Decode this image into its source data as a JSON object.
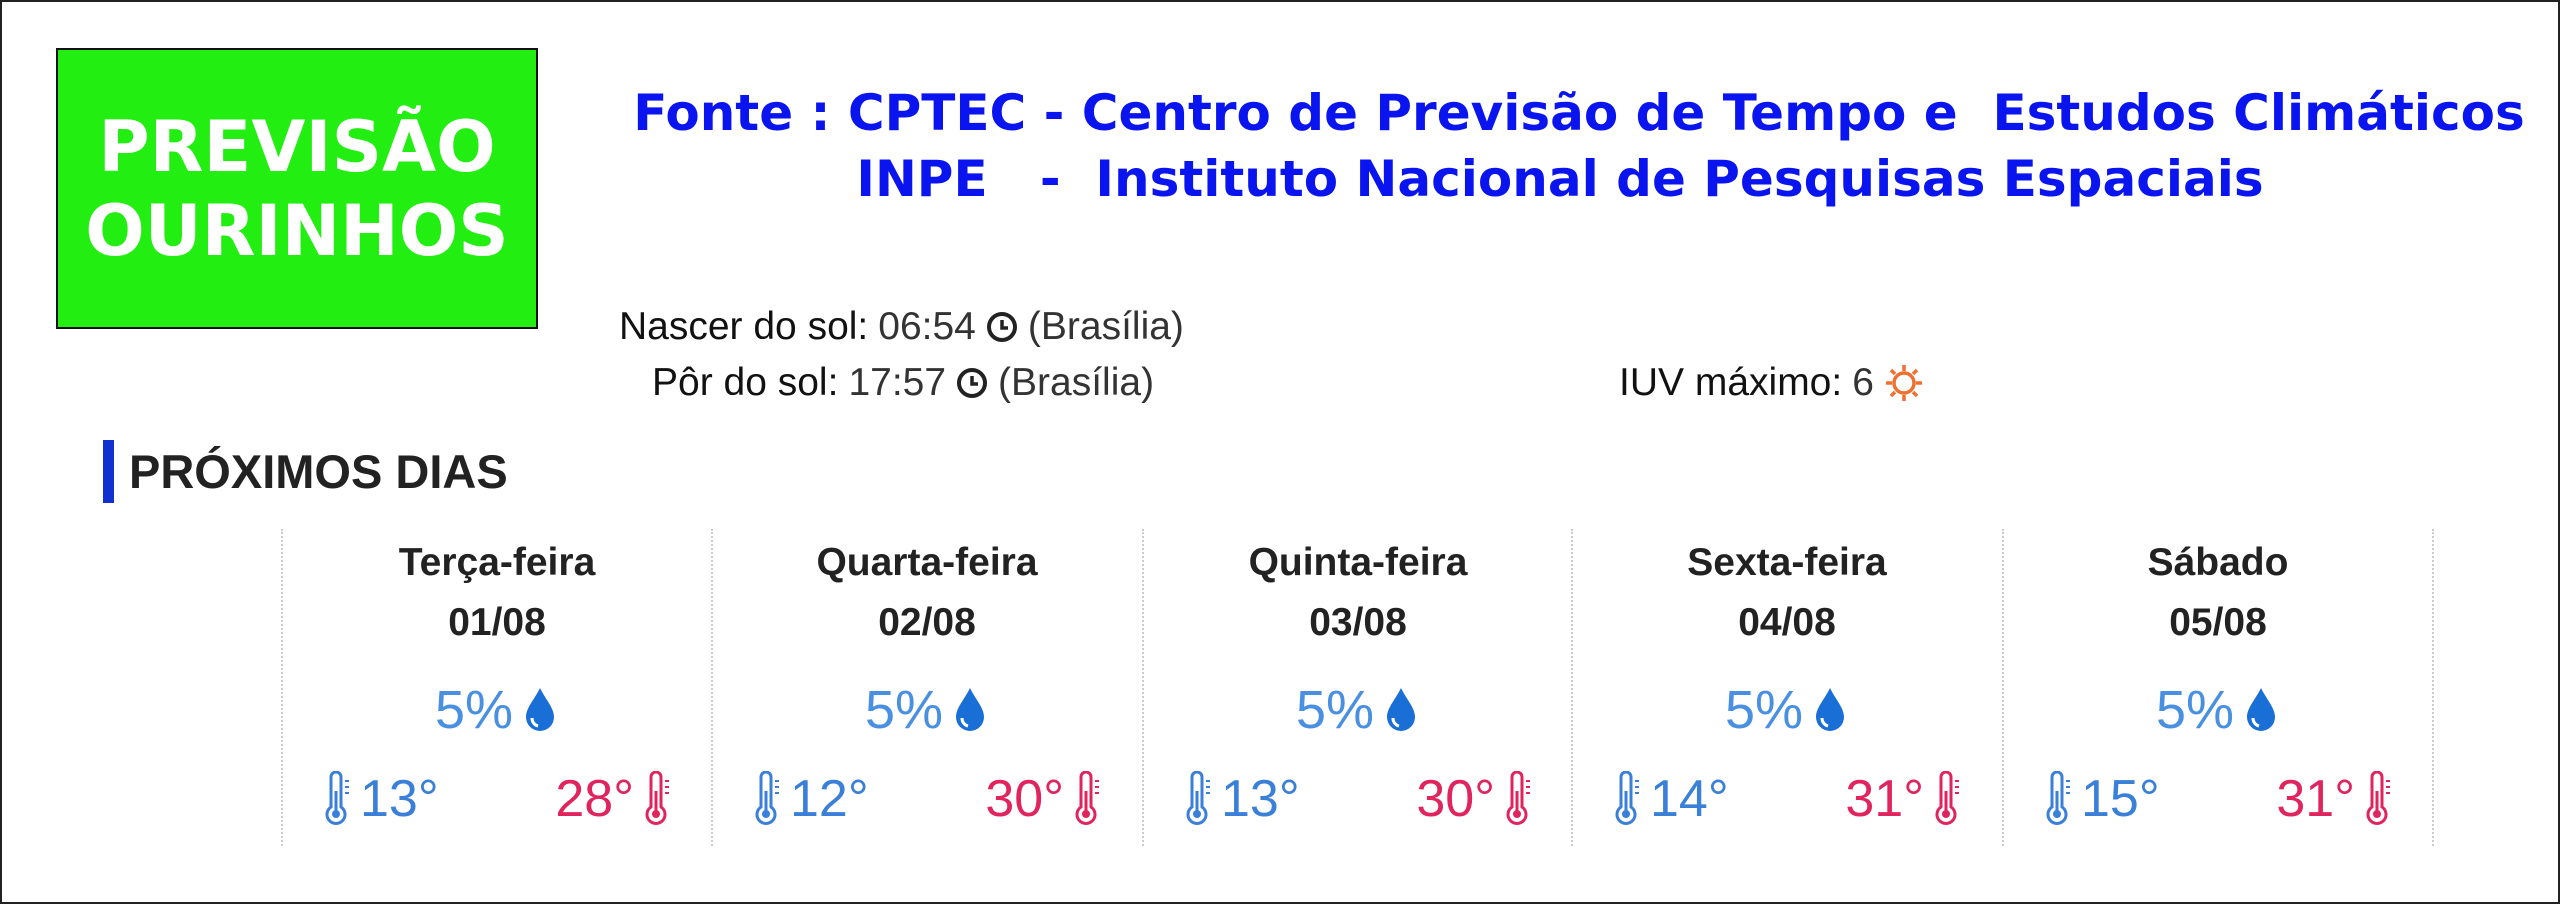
{
  "header": {
    "badge": [
      "PREVISÃO",
      "OURINHOS"
    ],
    "source": [
      "Fonte : CPTEC - Centro de Previsão de Tempo e  Estudos Climáticos",
      "INPE   -  Instituto Nacional de Pesquisas Espaciais"
    ]
  },
  "sun": {
    "sunrise_label": "Nascer do sol:",
    "sunrise": "06:54",
    "sunrise_zone": "(Brasília)",
    "sunset_label": "Pôr do sol:",
    "sunset": "17:57",
    "sunset_zone": "(Brasília)",
    "uv_label": "IUV máximo:",
    "uv": "6"
  },
  "forecast": {
    "title": "PRÓXIMOS DIAS",
    "days": [
      {
        "name": "Terça-feira",
        "date": "01/08",
        "rain": "5%",
        "min": "13°",
        "max": "28°"
      },
      {
        "name": "Quarta-feira",
        "date": "02/08",
        "rain": "5%",
        "min": "12°",
        "max": "30°"
      },
      {
        "name": "Quinta-feira",
        "date": "03/08",
        "rain": "5%",
        "min": "13°",
        "max": "30°"
      },
      {
        "name": "Sexta-feira",
        "date": "04/08",
        "rain": "5%",
        "min": "14°",
        "max": "31°"
      },
      {
        "name": "Sábado",
        "date": "05/08",
        "rain": "5%",
        "min": "15°",
        "max": "31°"
      }
    ]
  }
}
